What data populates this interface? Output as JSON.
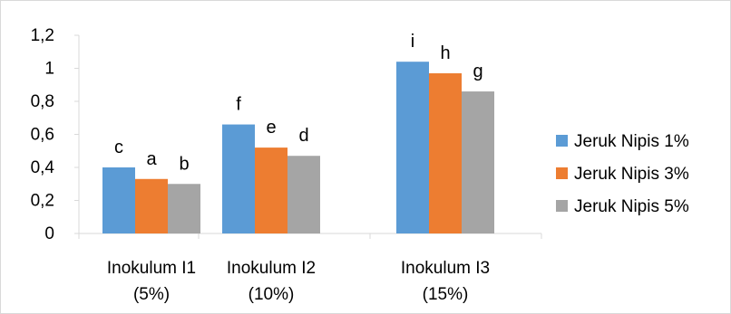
{
  "chart_data": {
    "type": "bar",
    "categories": [
      [
        "Inokulum I1",
        "(5%)"
      ],
      [
        "Inokulum I2",
        "(10%)"
      ],
      [
        "Inokulum I3",
        "(15%)"
      ]
    ],
    "series": [
      {
        "name": "Jeruk Nipis 1%",
        "color": "#5b9bd5",
        "values": [
          0.4,
          0.66,
          1.04
        ],
        "labels": [
          "c",
          "f",
          "i"
        ]
      },
      {
        "name": "Jeruk Nipis 3%",
        "color": "#ed7d31",
        "values": [
          0.33,
          0.52,
          0.97
        ],
        "labels": [
          "a",
          "e",
          "h"
        ]
      },
      {
        "name": "Jeruk Nipis 5%",
        "color": "#a5a5a5",
        "values": [
          0.3,
          0.47,
          0.86
        ],
        "labels": [
          "b",
          "d",
          "g"
        ]
      }
    ],
    "yticks": [
      "0",
      "0,2",
      "0,4",
      "0,6",
      "0,8",
      "1",
      "1,2"
    ],
    "ylim": [
      0,
      1.2
    ],
    "grid": false,
    "legend": "right",
    "title": "",
    "xlabel": "",
    "ylabel": ""
  }
}
